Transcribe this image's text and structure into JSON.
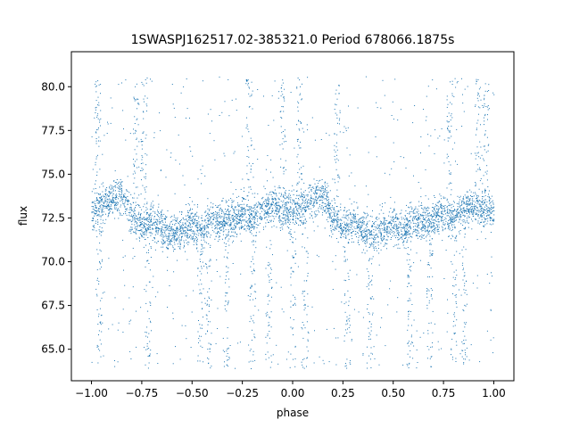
{
  "chart_data": {
    "type": "scatter",
    "title": "1SWASPJ162517.02-385321.0 Period 678066.1875s",
    "xlabel": "phase",
    "ylabel": "flux",
    "xlim": [
      -1.1,
      1.1
    ],
    "ylim": [
      63.2,
      82.0
    ],
    "x_ticks": [
      -1.0,
      -0.75,
      -0.5,
      -0.25,
      0.0,
      0.25,
      0.5,
      0.75,
      1.0
    ],
    "x_tick_labels": [
      "−1.00",
      "−0.75",
      "−0.50",
      "−0.25",
      "0.00",
      "0.25",
      "0.50",
      "0.75",
      "1.00"
    ],
    "y_ticks": [
      65.0,
      67.5,
      70.0,
      72.5,
      75.0,
      77.5,
      80.0
    ],
    "y_tick_labels": [
      "65.0",
      "67.5",
      "70.0",
      "72.5",
      "75.0",
      "77.5",
      "80.0"
    ],
    "grid": false,
    "marker_color": "#1f77b4",
    "series": [
      {
        "phase_range": [
          -1.0,
          1.0
        ],
        "baseline_flux": [
          {
            "phase": -1.0,
            "flux": 72.9
          },
          {
            "phase": -0.95,
            "flux": 73.2
          },
          {
            "phase": -0.9,
            "flux": 73.6
          },
          {
            "phase": -0.85,
            "flux": 73.9
          },
          {
            "phase": -0.8,
            "flux": 72.6
          },
          {
            "phase": -0.75,
            "flux": 72.0
          },
          {
            "phase": -0.7,
            "flux": 72.3
          },
          {
            "phase": -0.65,
            "flux": 71.8
          },
          {
            "phase": -0.6,
            "flux": 71.5
          },
          {
            "phase": -0.55,
            "flux": 71.9
          },
          {
            "phase": -0.5,
            "flux": 72.2
          },
          {
            "phase": -0.45,
            "flux": 71.8
          },
          {
            "phase": -0.4,
            "flux": 72.4
          },
          {
            "phase": -0.35,
            "flux": 72.3
          },
          {
            "phase": -0.3,
            "flux": 72.5
          },
          {
            "phase": -0.25,
            "flux": 72.8
          },
          {
            "phase": -0.2,
            "flux": 72.6
          },
          {
            "phase": -0.15,
            "flux": 73.0
          },
          {
            "phase": -0.1,
            "flux": 73.3
          },
          {
            "phase": -0.05,
            "flux": 72.9
          },
          {
            "phase": 0.0,
            "flux": 72.9
          },
          {
            "phase": 0.05,
            "flux": 73.2
          },
          {
            "phase": 0.1,
            "flux": 73.6
          },
          {
            "phase": 0.15,
            "flux": 73.9
          },
          {
            "phase": 0.2,
            "flux": 72.6
          },
          {
            "phase": 0.25,
            "flux": 72.0
          },
          {
            "phase": 0.3,
            "flux": 72.3
          },
          {
            "phase": 0.35,
            "flux": 71.8
          },
          {
            "phase": 0.4,
            "flux": 71.5
          },
          {
            "phase": 0.45,
            "flux": 71.9
          },
          {
            "phase": 0.5,
            "flux": 72.2
          },
          {
            "phase": 0.55,
            "flux": 71.8
          },
          {
            "phase": 0.6,
            "flux": 72.4
          },
          {
            "phase": 0.65,
            "flux": 72.3
          },
          {
            "phase": 0.7,
            "flux": 72.5
          },
          {
            "phase": 0.75,
            "flux": 72.8
          },
          {
            "phase": 0.8,
            "flux": 72.6
          },
          {
            "phase": 0.85,
            "flux": 73.0
          },
          {
            "phase": 0.9,
            "flux": 73.3
          },
          {
            "phase": 0.95,
            "flux": 72.9
          },
          {
            "phase": 1.0,
            "flux": 72.9
          }
        ],
        "high_outlier_phases": [
          -0.97,
          -0.78,
          -0.74,
          -0.22,
          -0.05,
          0.03,
          0.22,
          0.78,
          0.92,
          0.96
        ],
        "low_outlier_phases": [
          -0.96,
          -0.72,
          -0.46,
          -0.42,
          -0.33,
          -0.2,
          -0.12,
          0.0,
          0.06,
          0.27,
          0.38,
          0.58,
          0.68,
          0.8,
          0.85
        ],
        "spread_flux": 1.0,
        "flux_max": 80.6,
        "flux_min": 63.9
      }
    ]
  }
}
